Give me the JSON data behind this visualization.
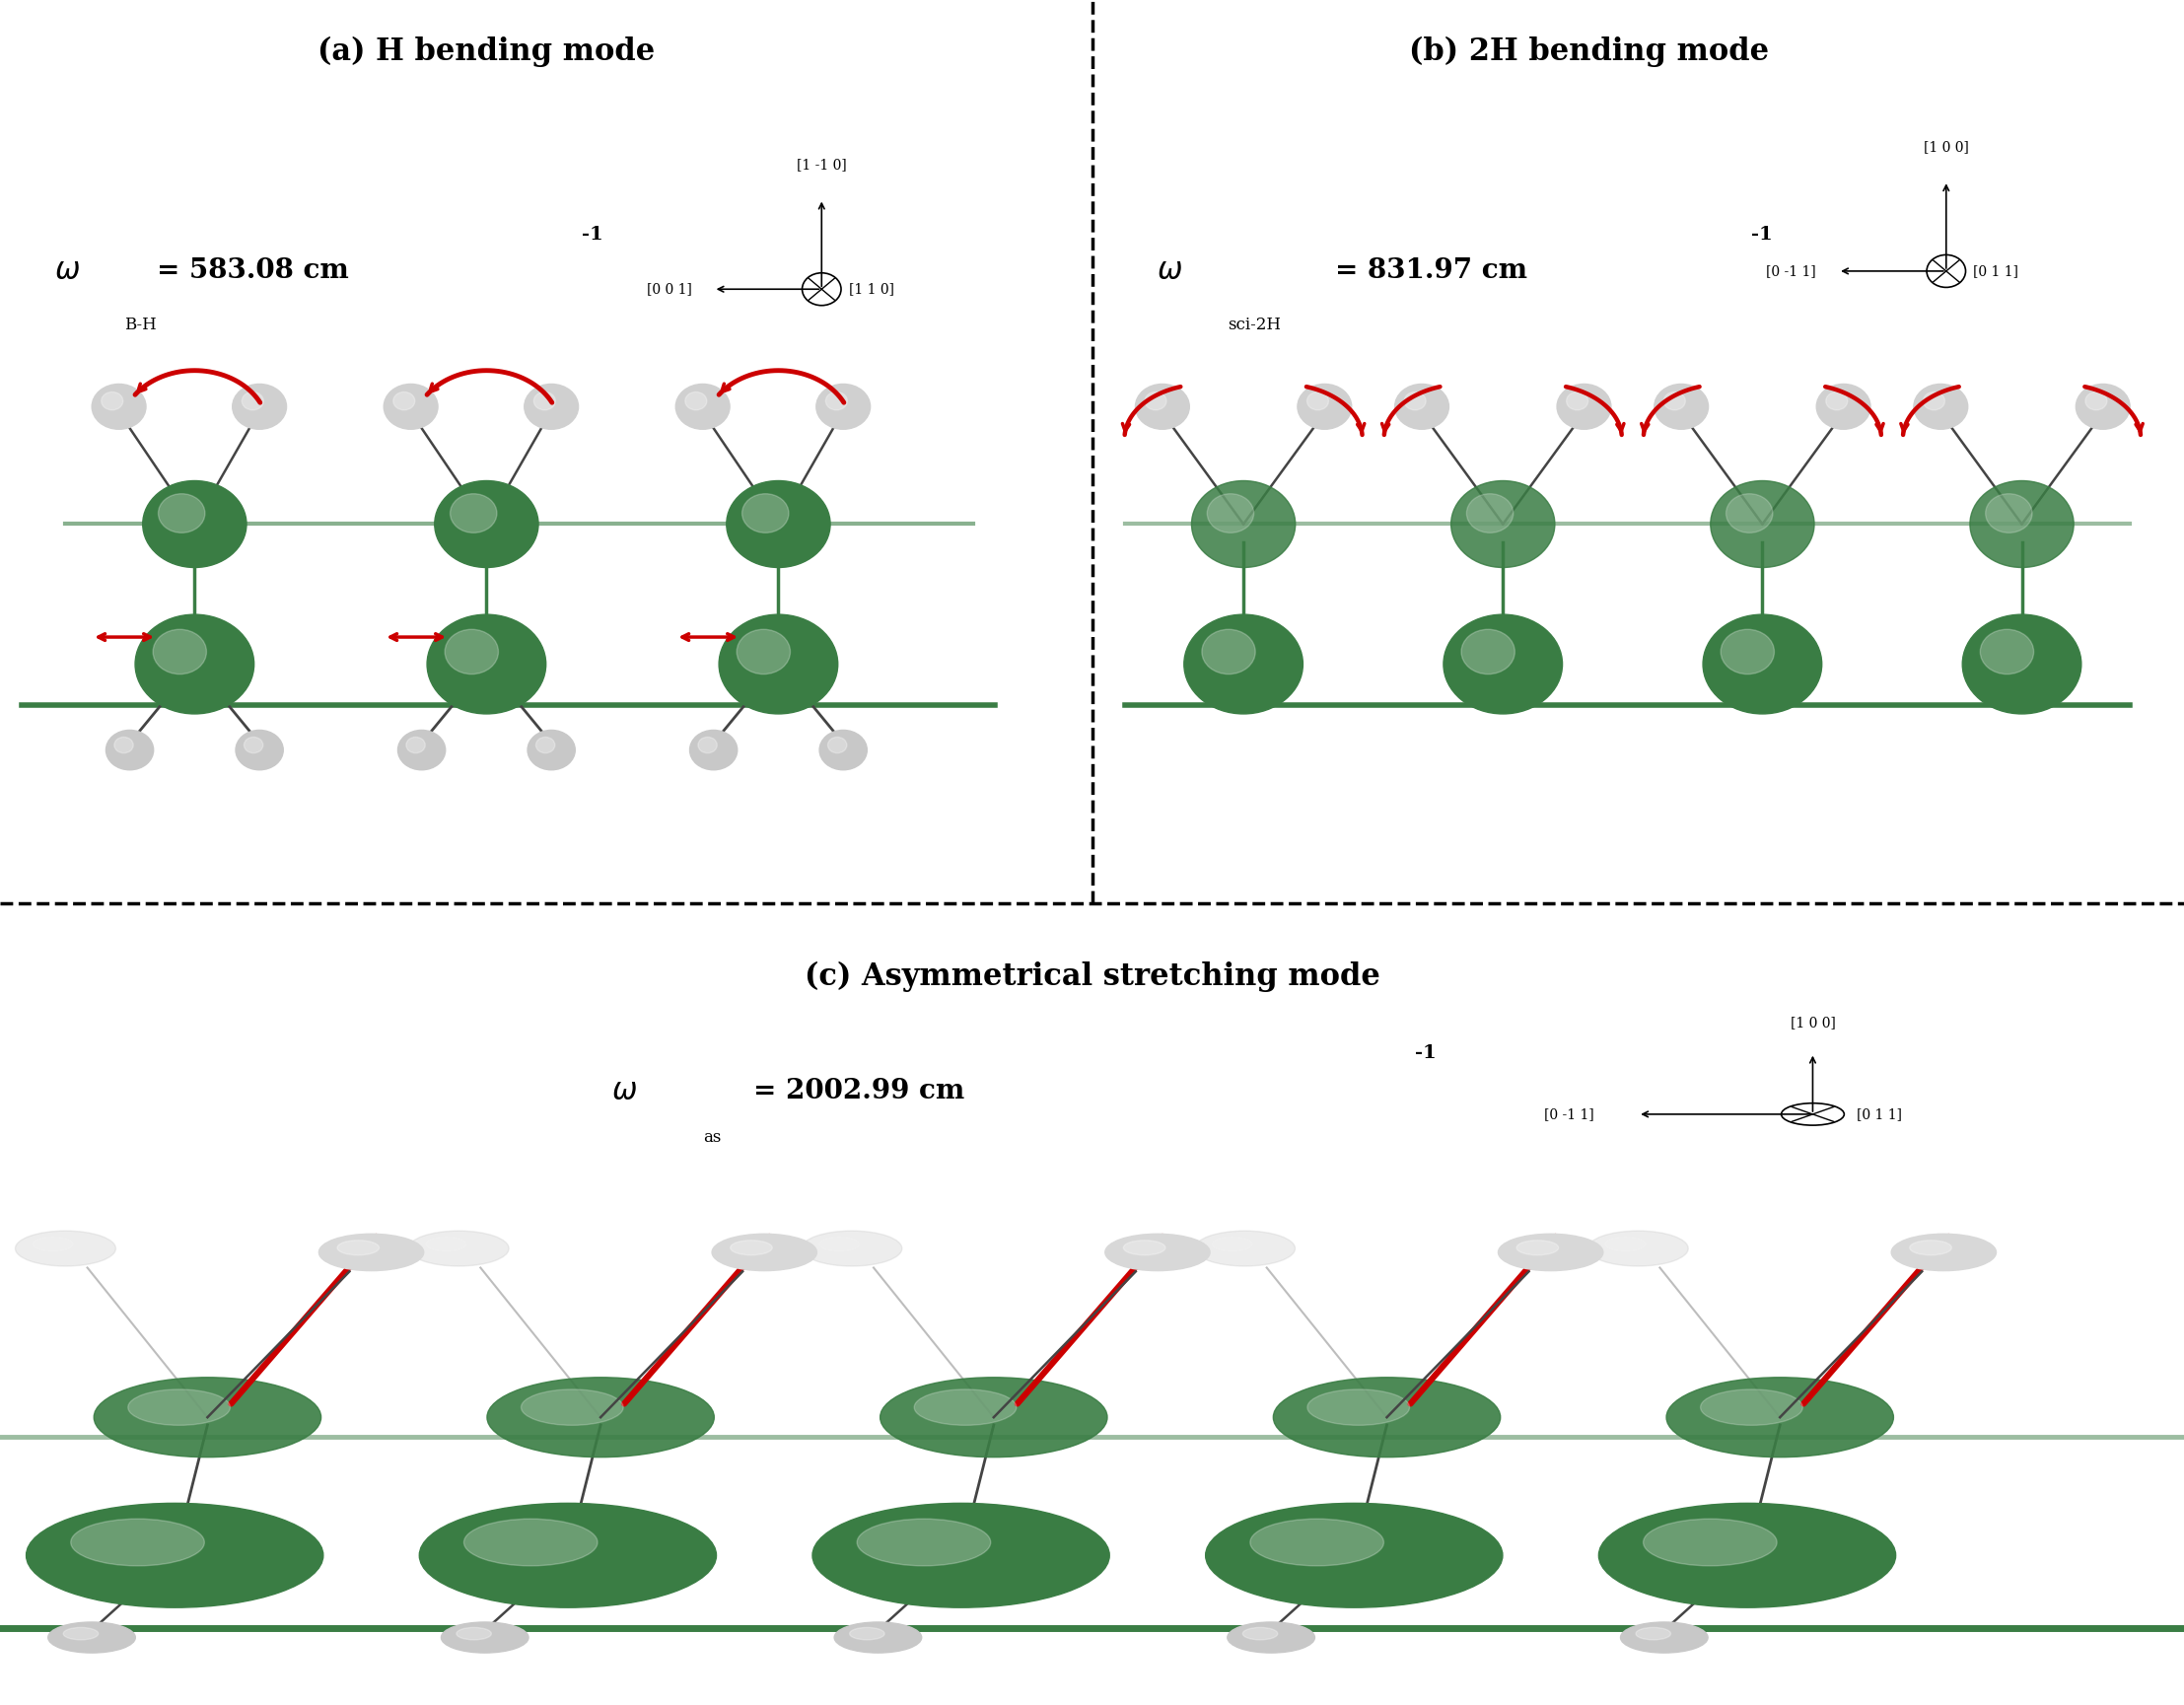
{
  "title_a": "(a) H bending mode",
  "title_b": "(b) 2H bending mode",
  "title_c": "(c) Asymmetrical stretching mode",
  "bg_color": "#ffffff",
  "green_color": "#3a7d44",
  "red_color": "#cc0000",
  "dark_green": "#2d6636",
  "axis_label_a_up": "[1 -1 0]",
  "axis_label_a_left": "[0 0 1]",
  "axis_label_a_right": "[1 1 0]",
  "axis_label_b_up": "[1 0 0]",
  "axis_label_b_left": "[0 -1 1]",
  "axis_label_b_right": "[0 1 1]",
  "axis_label_c_up": "[1 0 0]",
  "axis_label_c_left": "[0 -1 1]",
  "axis_label_c_right": "[0 1 1]"
}
